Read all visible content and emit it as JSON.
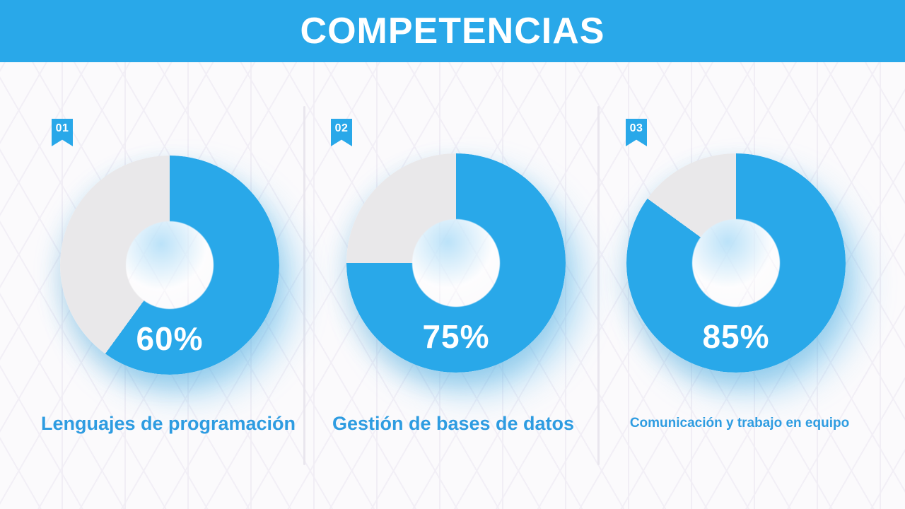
{
  "header": {
    "title": "COMPETENCIAS"
  },
  "colors": {
    "accent_blue": "#29a8e9",
    "remainder_gray": "#e9e8ea",
    "label_text_blue": "#2e9ce1",
    "background": "#fbfafc",
    "header_text": "#ffffff"
  },
  "sections": [
    {
      "badge": "01",
      "percent": "60%",
      "label": "Lenguajes de programación"
    },
    {
      "badge": "02",
      "percent": "75%",
      "label": "Gestión de bases de datos"
    },
    {
      "badge": "03",
      "percent": "85%",
      "label": "Comunicación y trabajo en equipo"
    }
  ],
  "chart_data": [
    {
      "type": "pie",
      "subtype": "donut",
      "title": "Lenguajes de programación",
      "values": [
        60,
        40
      ],
      "colors": [
        "#29a8e9",
        "#e9e8ea"
      ],
      "center_label": "60%",
      "start_angle_deg": 0,
      "direction": "clockwise",
      "inner_radius_ratio": 0.4,
      "legend": "none"
    },
    {
      "type": "pie",
      "subtype": "donut",
      "title": "Gestión de bases de datos",
      "values": [
        75,
        25
      ],
      "colors": [
        "#29a8e9",
        "#e9e8ea"
      ],
      "center_label": "75%",
      "start_angle_deg": 0,
      "direction": "clockwise",
      "inner_radius_ratio": 0.4,
      "legend": "none"
    },
    {
      "type": "pie",
      "subtype": "donut",
      "title": "Comunicación y trabajo en equipo",
      "values": [
        85,
        15
      ],
      "colors": [
        "#29a8e9",
        "#e9e8ea"
      ],
      "center_label": "85%",
      "start_angle_deg": 0,
      "direction": "clockwise",
      "inner_radius_ratio": 0.4,
      "legend": "none"
    }
  ]
}
